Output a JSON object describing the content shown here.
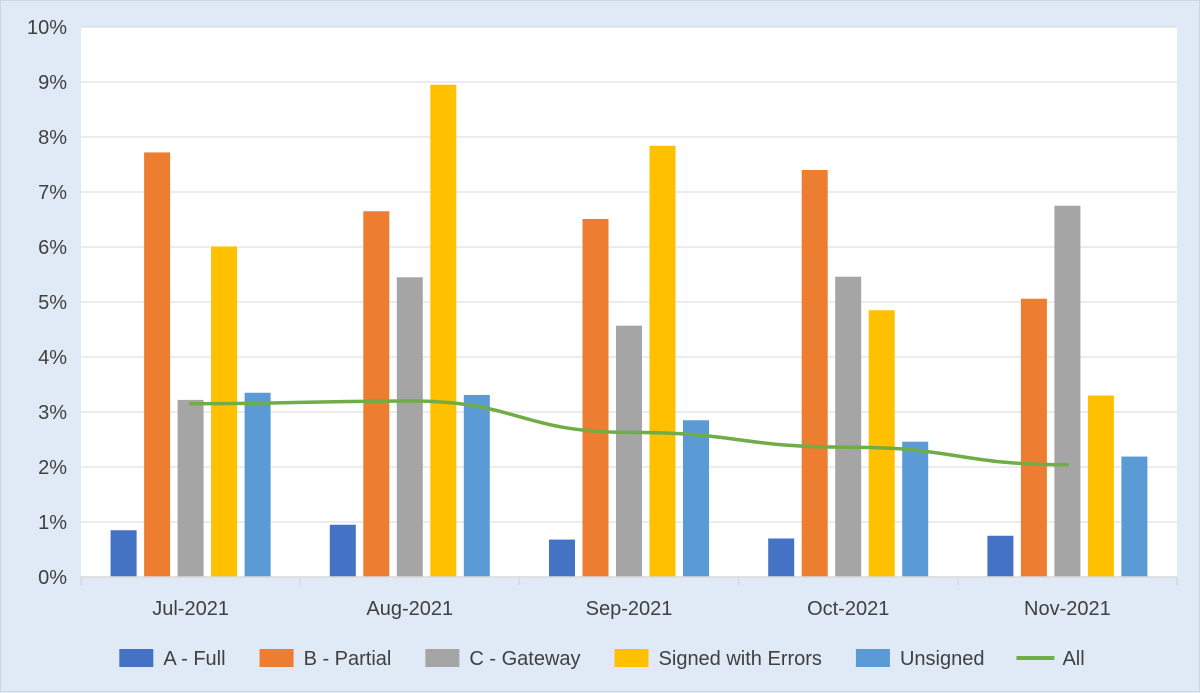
{
  "chart_data": {
    "type": "bar",
    "categories": [
      "Jul-2021",
      "Aug-2021",
      "Sep-2021",
      "Oct-2021",
      "Nov-2021"
    ],
    "series": [
      {
        "name": "A - Full",
        "kind": "bar",
        "color": "#4472c4",
        "values": [
          0.85,
          0.95,
          0.68,
          0.7,
          0.75
        ]
      },
      {
        "name": "B - Partial",
        "kind": "bar",
        "color": "#ed7d31",
        "values": [
          7.72,
          6.65,
          6.51,
          7.4,
          5.06
        ]
      },
      {
        "name": "C - Gateway",
        "kind": "bar",
        "color": "#a5a5a5",
        "values": [
          3.22,
          5.45,
          4.57,
          5.46,
          6.75
        ]
      },
      {
        "name": "Signed with Errors",
        "kind": "bar",
        "color": "#ffc000",
        "values": [
          6.01,
          8.95,
          7.84,
          4.85,
          3.3
        ]
      },
      {
        "name": "Unsigned",
        "kind": "bar",
        "color": "#5b9bd5",
        "values": [
          3.35,
          3.31,
          2.85,
          2.46,
          2.19
        ]
      },
      {
        "name": "All",
        "kind": "line",
        "color": "#70ad47",
        "values": [
          3.15,
          3.2,
          2.63,
          2.36,
          2.04
        ]
      }
    ],
    "title": "",
    "xlabel": "",
    "ylabel": "",
    "ylim": [
      0,
      10
    ],
    "yticks": [
      "0%",
      "1%",
      "2%",
      "3%",
      "4%",
      "5%",
      "6%",
      "7%",
      "8%",
      "9%",
      "10%"
    ],
    "grid": true,
    "legend_position": "bottom"
  }
}
